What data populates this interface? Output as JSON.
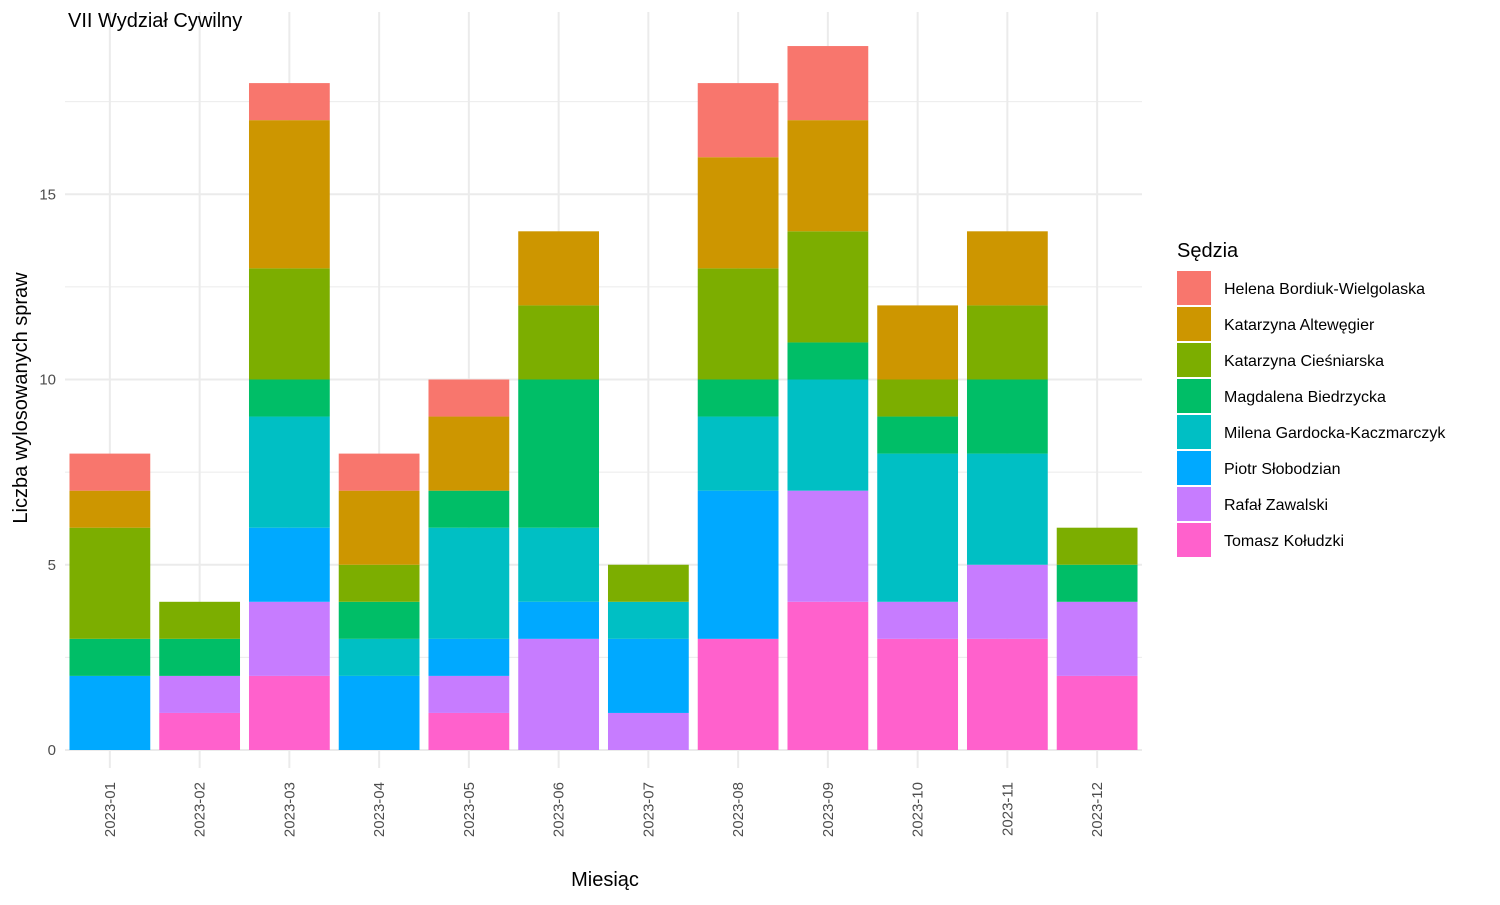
{
  "chart_data": {
    "type": "bar",
    "stacked": true,
    "title": "VII Wydział Cywilny",
    "xlabel": "Miesiąc",
    "ylabel": "Liczba wylosowanych spraw",
    "ylim": [
      0,
      19.95
    ],
    "yticks": [
      0,
      5,
      10,
      15
    ],
    "grid": true,
    "legend_title": "Sędzia",
    "legend_position": "right",
    "categories": [
      "2023-01",
      "2023-02",
      "2023-03",
      "2023-04",
      "2023-05",
      "2023-06",
      "2023-07",
      "2023-08",
      "2023-09",
      "2023-10",
      "2023-11",
      "2023-12"
    ],
    "series": [
      {
        "name": "Tomasz Kołudzki",
        "color": "#FF61CC",
        "values": [
          0,
          1,
          2,
          0,
          1,
          0,
          0,
          3,
          4,
          3,
          3,
          2
        ]
      },
      {
        "name": "Rafał Zawalski",
        "color": "#C77CFF",
        "values": [
          0,
          1,
          2,
          0,
          1,
          3,
          1,
          0,
          3,
          1,
          2,
          2
        ]
      },
      {
        "name": "Piotr Słobodzian",
        "color": "#00A9FF",
        "values": [
          2,
          0,
          2,
          2,
          1,
          1,
          2,
          4,
          0,
          0,
          0,
          0
        ]
      },
      {
        "name": "Milena Gardocka-Kaczmarczyk",
        "color": "#00BFC4",
        "values": [
          0,
          0,
          3,
          1,
          3,
          2,
          1,
          2,
          3,
          4,
          3,
          0
        ]
      },
      {
        "name": "Magdalena Biedrzycka",
        "color": "#00BE67",
        "values": [
          1,
          1,
          1,
          1,
          1,
          4,
          0,
          1,
          1,
          1,
          2,
          1
        ]
      },
      {
        "name": "Katarzyna Cieśniarska",
        "color": "#7CAE00",
        "values": [
          3,
          1,
          3,
          1,
          0,
          2,
          1,
          3,
          3,
          1,
          2,
          1
        ]
      },
      {
        "name": "Katarzyna Altewęgier",
        "color": "#CD9600",
        "values": [
          1,
          0,
          4,
          2,
          2,
          2,
          0,
          3,
          3,
          2,
          2,
          0
        ]
      },
      {
        "name": "Helena Bordiuk-Wielgolaska",
        "color": "#F8766D",
        "values": [
          1,
          0,
          1,
          1,
          1,
          0,
          0,
          2,
          2,
          0,
          0,
          0
        ]
      }
    ]
  }
}
